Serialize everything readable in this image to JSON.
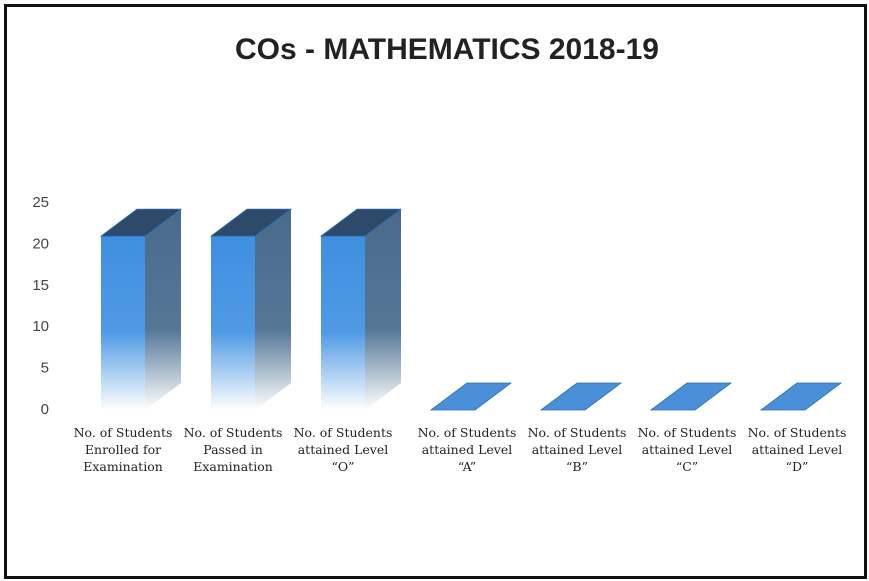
{
  "chart_data": {
    "type": "bar3d",
    "title": "COs  - MATHEMATICS  2018-19",
    "categories": [
      "No. of Students Enrolled for Examination",
      "No. of Students Passed in Examination",
      "No. of Students attained Level “O”",
      "No. of Students attained Level “A”",
      "No. of Students attained Level “B”",
      "No. of Students attained Level “C”",
      "No. of Students attained Level “D”"
    ],
    "values": [
      21,
      21,
      21,
      0,
      0,
      0,
      0
    ],
    "color": "#4a90d9",
    "ylim": [
      0,
      25
    ],
    "yticks": [
      0,
      5,
      10,
      15,
      20,
      25
    ],
    "grid": false
  }
}
